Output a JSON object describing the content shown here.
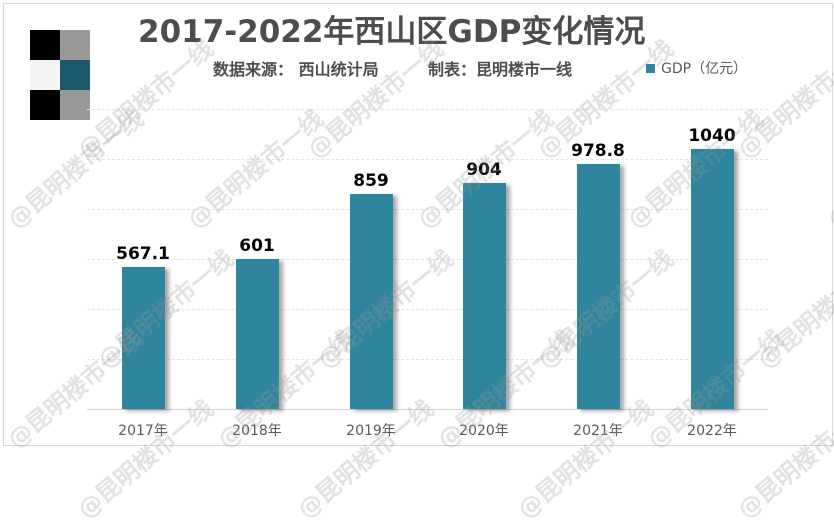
{
  "header": {
    "title": "2017-2022年西山区GDP变化情况",
    "source": "数据来源：  西山统计局",
    "maker": "制表：昆明楼市一线"
  },
  "legend": {
    "label": "GDP（亿元）",
    "color": "#2e859d"
  },
  "watermark": "@昆明楼市一线",
  "colors": {
    "bar": "#2e859d",
    "title": "#4d4d4d",
    "grid": "#e3e3e3"
  },
  "chart_data": {
    "type": "bar",
    "title": "2017-2022年西山区GDP变化情况",
    "subtitle": "数据来源：西山统计局  制表：昆明楼市一线",
    "categories": [
      "2017年",
      "2018年",
      "2019年",
      "2020年",
      "2021年",
      "2022年"
    ],
    "series": [
      {
        "name": "GDP（亿元）",
        "values": [
          567.1,
          601,
          859,
          904,
          978.8,
          1040
        ]
      }
    ],
    "data_labels": [
      "567.1",
      "601",
      "859",
      "904",
      "978.8",
      "1040"
    ],
    "xlabel": "",
    "ylabel": "",
    "ylim": [
      0,
      1200
    ],
    "gridlines": [
      200,
      400,
      600,
      800,
      1000,
      1200
    ],
    "y_axis_visible": false,
    "grid": true,
    "legend_position": "top-right"
  }
}
